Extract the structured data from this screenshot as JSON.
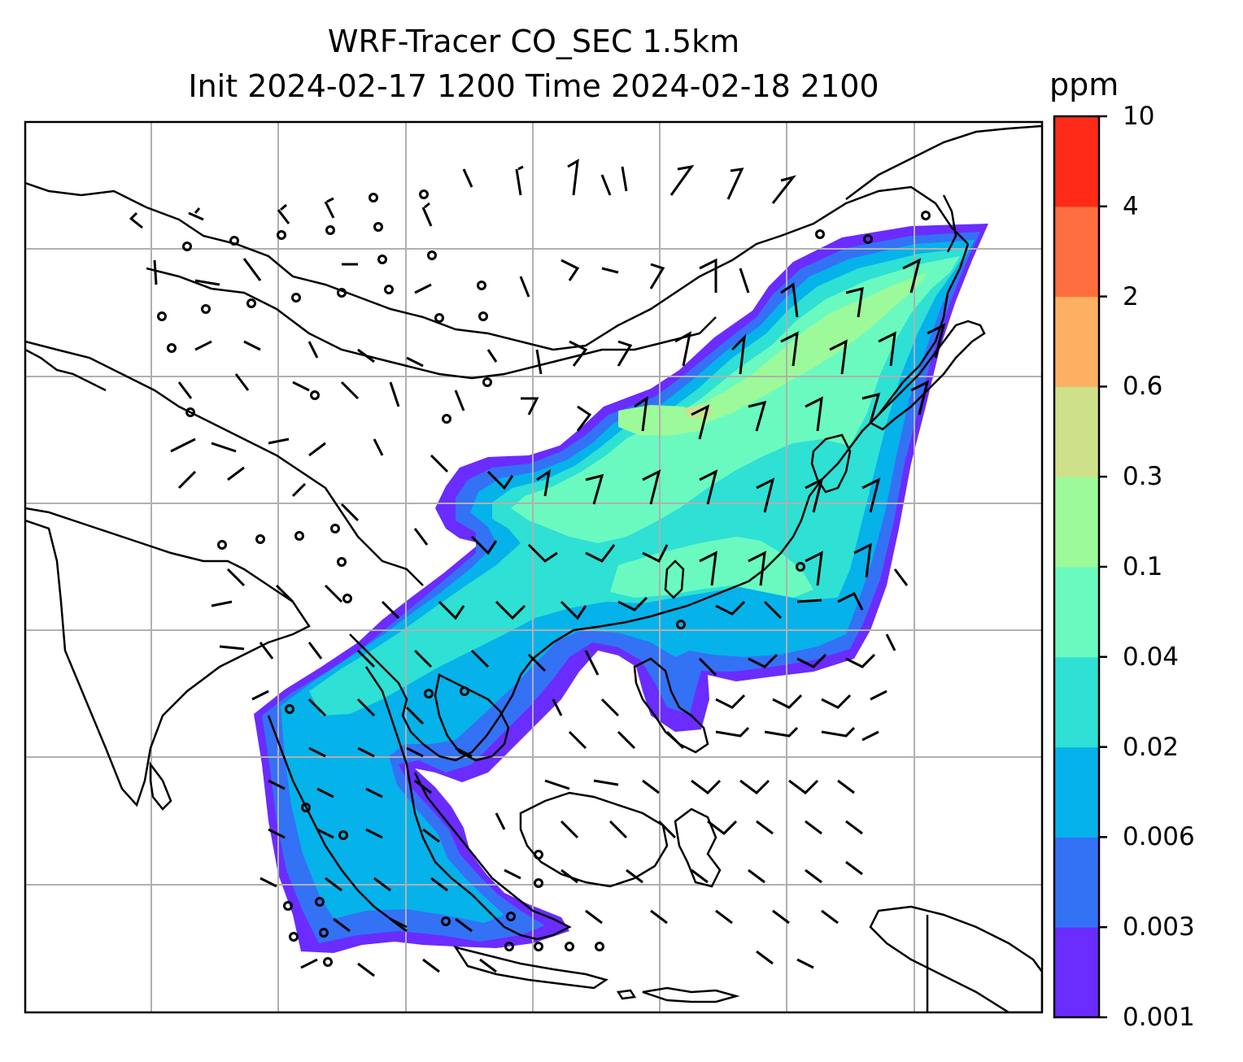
{
  "title": {
    "line1": "WRF-Tracer CO_SEC 1.5km",
    "line2": "Init 2024-02-17 1200 Time 2024-02-18 2100"
  },
  "colorbar": {
    "unit": "ppm",
    "levels": [
      "0.001",
      "0.003",
      "0.006",
      "0.02",
      "0.04",
      "0.1",
      "0.3",
      "0.6",
      "2",
      "4",
      "10"
    ],
    "colors": [
      "#6a2cff",
      "#3372f5",
      "#05b2ea",
      "#2fe0d4",
      "#6afac0",
      "#9cfa9a",
      "#cfe08a",
      "#feb062",
      "#ff6e3e",
      "#ff2a18"
    ]
  },
  "map": {
    "gridlines": true,
    "overlay": "wind barbs",
    "background": "#ffffff",
    "coastline_color": "#000000",
    "grid_color": "#b0b0b0"
  }
}
